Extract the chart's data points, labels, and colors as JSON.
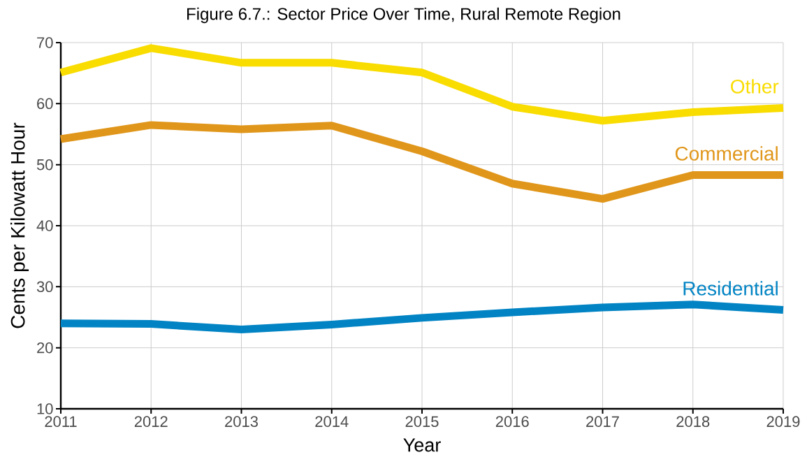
{
  "chart_data": {
    "type": "line",
    "title": "Figure 6.7.: Sector Price Over Time, Rural Remote Region",
    "xlabel": "Year",
    "ylabel": "Cents per Kilowatt Hour",
    "x": [
      2011,
      2012,
      2013,
      2014,
      2015,
      2016,
      2017,
      2018,
      2019
    ],
    "series": [
      {
        "name": "Other",
        "color": "#f9dc00",
        "values": [
          65.1,
          69.1,
          66.7,
          66.7,
          65.1,
          59.5,
          57.2,
          58.6,
          59.3
        ]
      },
      {
        "name": "Commercial",
        "color": "#e0961a",
        "values": [
          54.2,
          56.5,
          55.8,
          56.4,
          52.2,
          46.9,
          44.4,
          48.3,
          48.3
        ]
      },
      {
        "name": "Residential",
        "color": "#0284c4",
        "values": [
          24.0,
          23.9,
          23.0,
          23.8,
          24.9,
          25.8,
          26.6,
          27.1,
          26.2
        ]
      }
    ],
    "xlim": [
      2011,
      2019
    ],
    "ylim": [
      10,
      70
    ],
    "xticks": [
      2011,
      2012,
      2013,
      2014,
      2015,
      2016,
      2017,
      2018,
      2019
    ],
    "yticks": [
      10,
      20,
      30,
      40,
      50,
      60,
      70
    ],
    "grid": true
  }
}
